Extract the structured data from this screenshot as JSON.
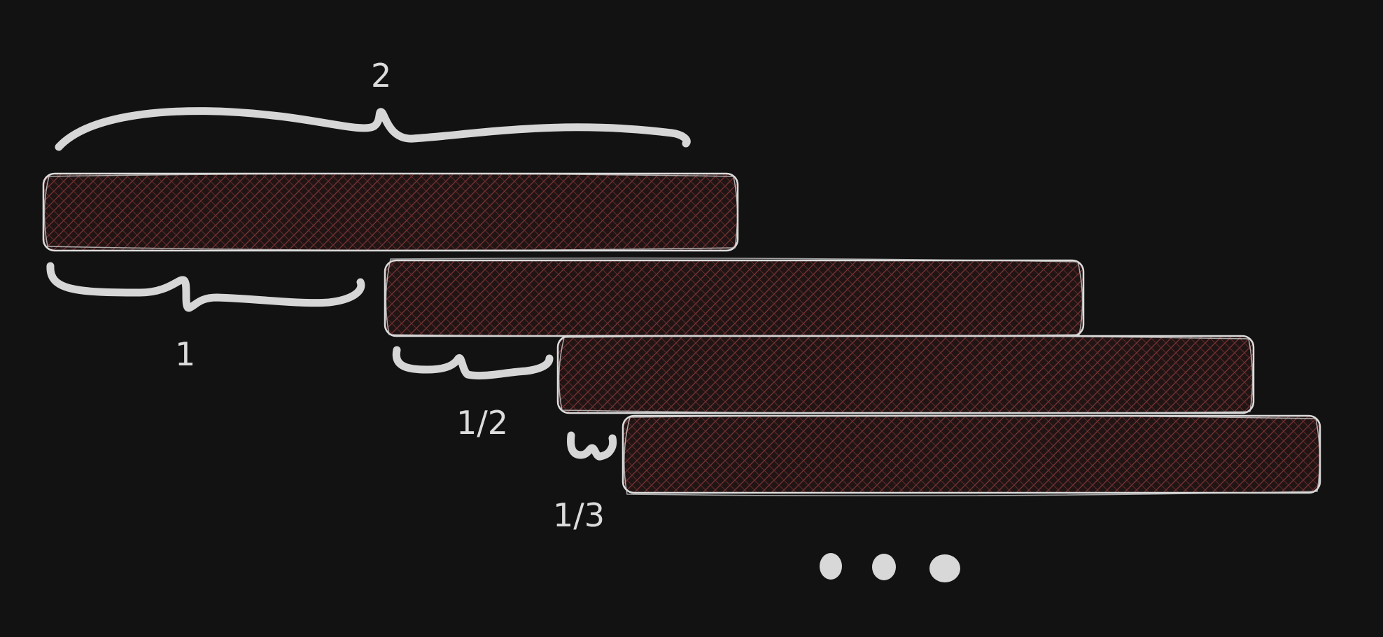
{
  "labels": {
    "top": "2",
    "first": "1",
    "second": "1/2",
    "third": "1/3"
  },
  "colors": {
    "background": "#121212",
    "hatch": "#7a3434",
    "stroke": "#dcdcdc"
  }
}
